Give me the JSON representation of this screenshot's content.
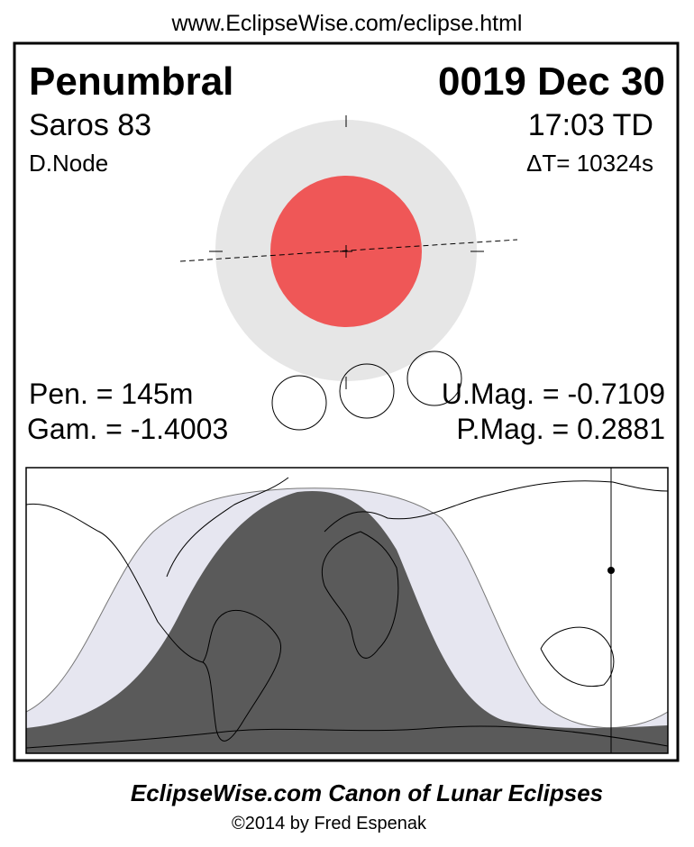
{
  "header": {
    "url": "www.EclipseWise.com/eclipse.html"
  },
  "eclipse": {
    "type": "Penumbral",
    "date": "0019 Dec 30",
    "saros": "Saros  83",
    "time": "17:03 TD",
    "node": "D.Node",
    "delta_t": "ΔT=  10324s",
    "pen_duration": "Pen. = 145m",
    "gamma": "Gam. = -1.4003",
    "umbral_magnitude": "U.Mag. = -0.7109",
    "penumbral_magnitude": "P.Mag. = 0.2881"
  },
  "colors": {
    "umbra": "#ef5757",
    "penumbra": "#e6e6e6",
    "map_umbra_visibility": "#5a5a5a",
    "map_penumbra_visibility": "#e6e6f0"
  },
  "footer": {
    "title": "EclipseWise.com Canon of Lunar Eclipses",
    "copyright": "©2014 by Fred Espenak"
  }
}
